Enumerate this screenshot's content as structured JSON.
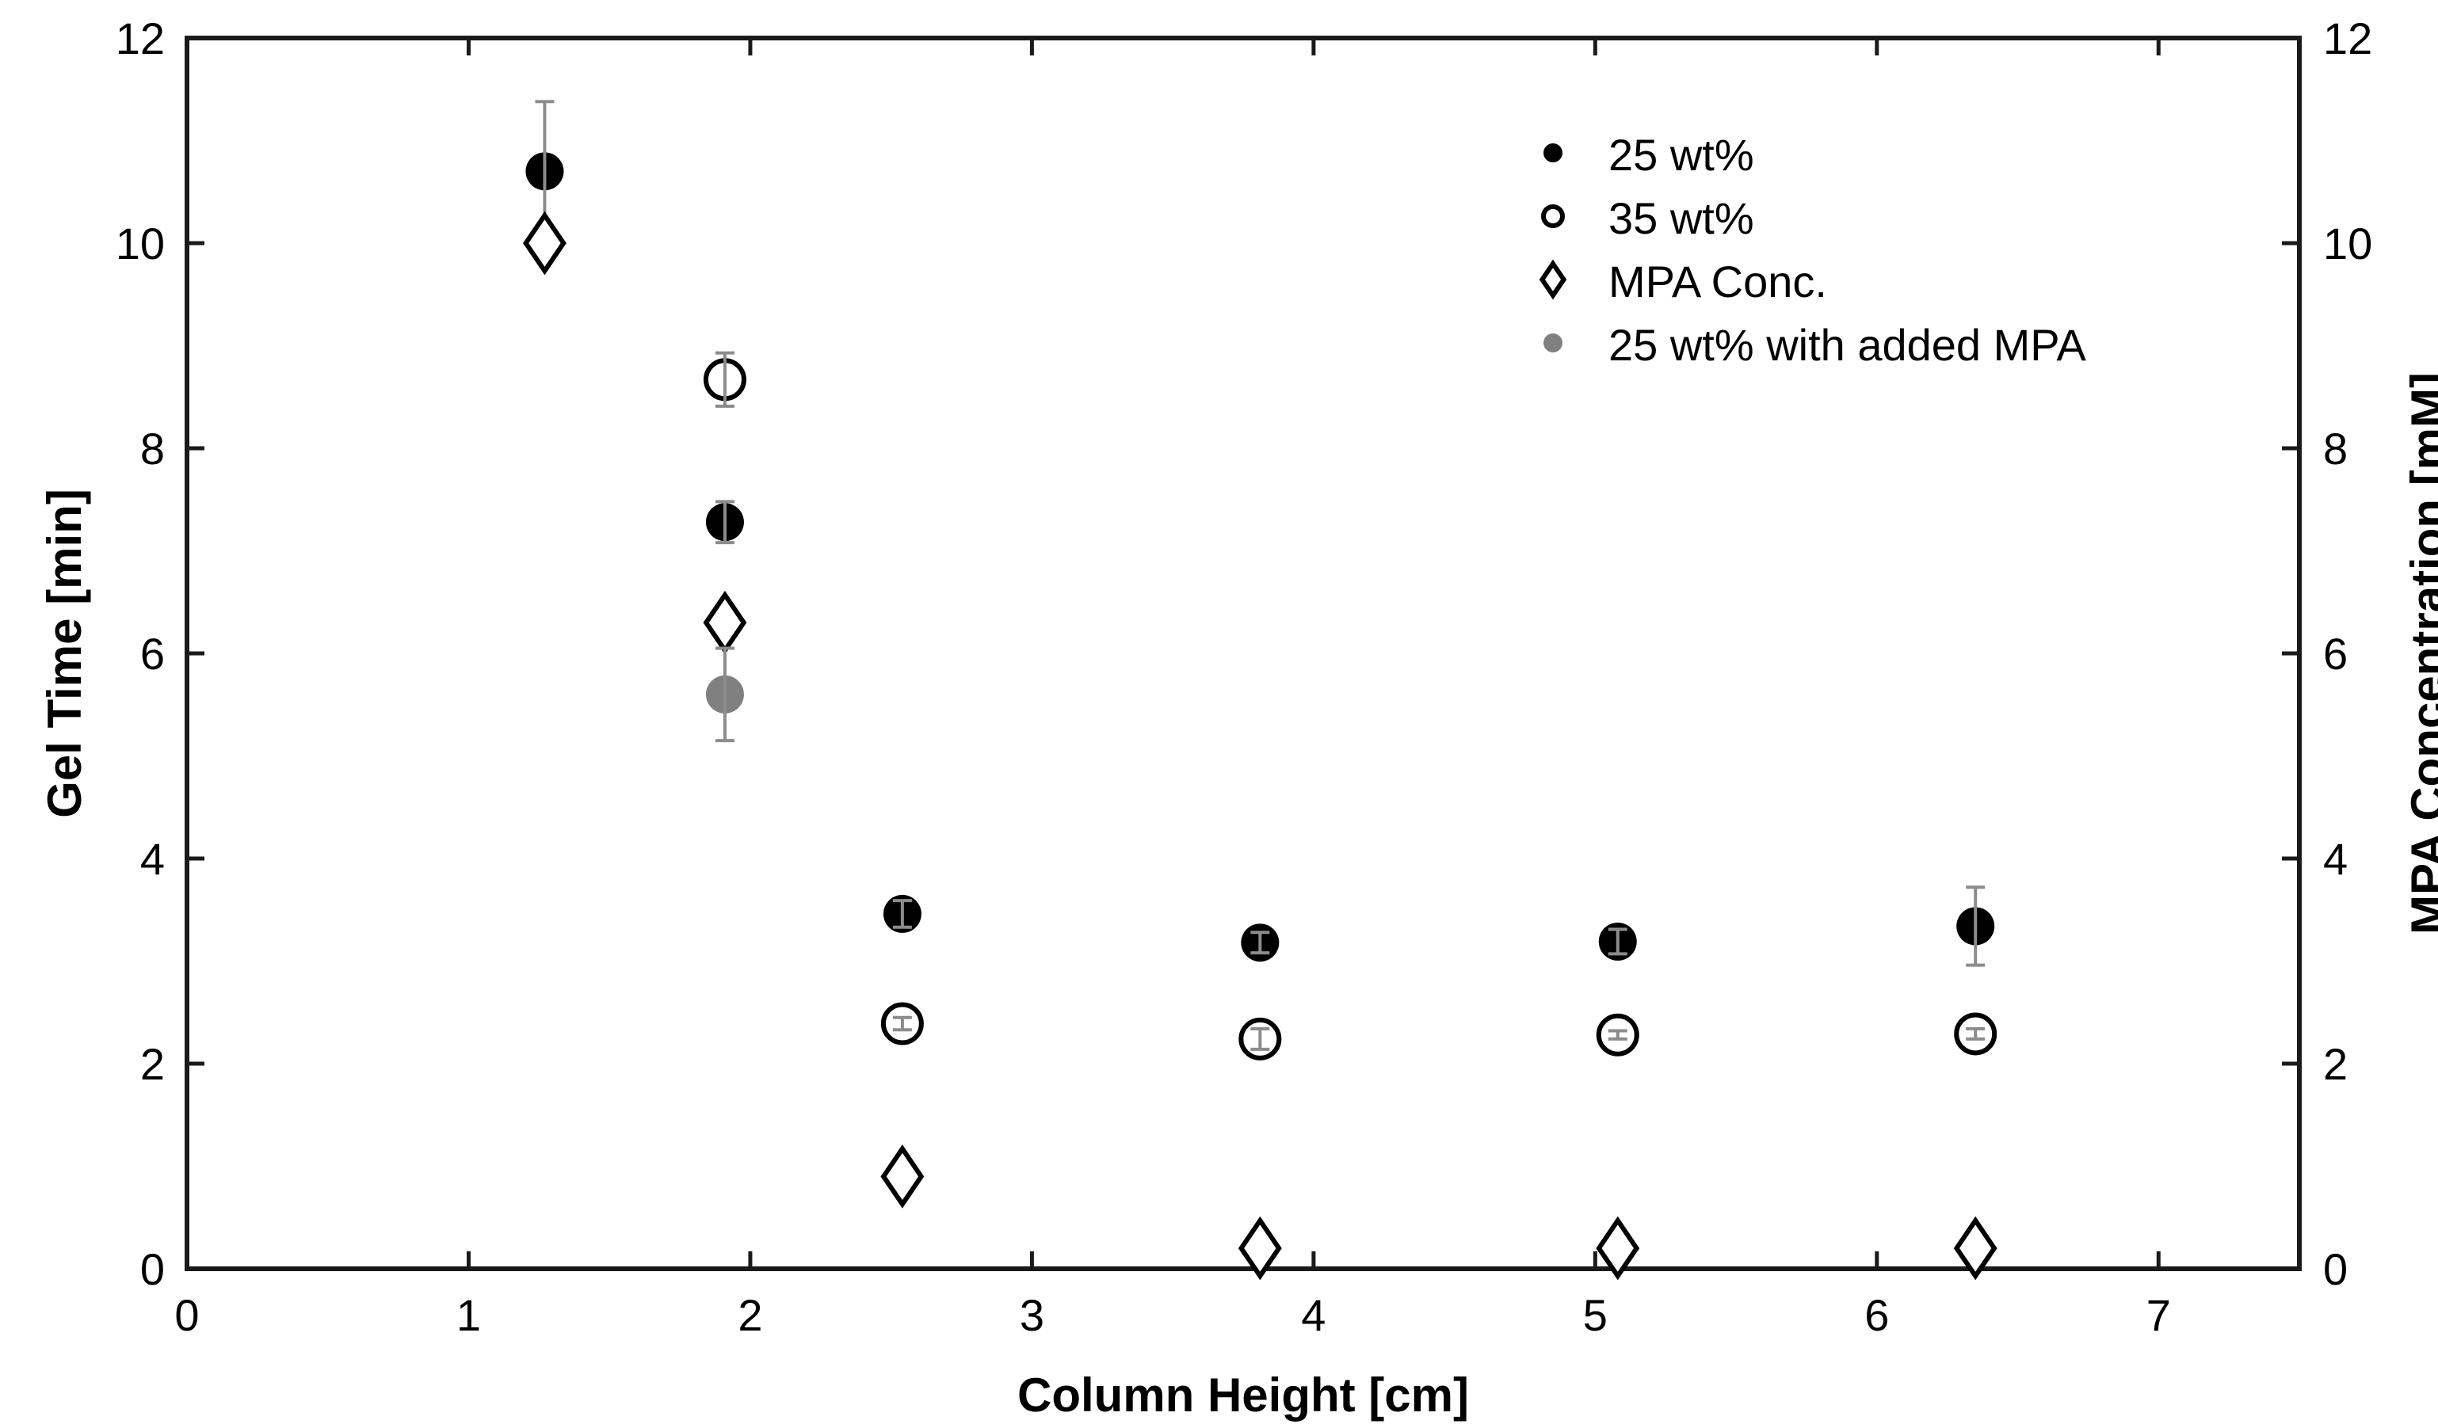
{
  "chart_data": {
    "type": "scatter",
    "xlabel": "Column Height [cm]",
    "ylabel": "Gel Time [min]",
    "y2label": "MPA Concentration [mM]",
    "xlim": [
      0,
      7.5
    ],
    "ylim": [
      0,
      12
    ],
    "y2lim": [
      0,
      12
    ],
    "xticks": [
      0,
      1,
      2,
      3,
      4,
      5,
      6,
      7
    ],
    "yticks": [
      0,
      2,
      4,
      6,
      8,
      10,
      12
    ],
    "y2ticks": [
      0,
      2,
      4,
      6,
      8,
      10,
      12
    ],
    "grid": false,
    "legend_position": "top-right",
    "series": [
      {
        "name": "25 wt%",
        "marker": "filled-circle",
        "color": "#000000",
        "axis": "left",
        "x": [
          1.27,
          1.91,
          2.54,
          3.81,
          5.08,
          6.35
        ],
        "y": [
          10.7,
          7.28,
          3.46,
          3.18,
          3.19,
          3.34
        ],
        "err": [
          0.68,
          0.2,
          0.13,
          0.1,
          0.12,
          0.38
        ]
      },
      {
        "name": "35 wt%",
        "marker": "open-circle",
        "color": "#000000",
        "axis": "left",
        "x": [
          1.91,
          2.54,
          3.81,
          5.08,
          6.35
        ],
        "y": [
          8.67,
          2.39,
          2.24,
          2.28,
          2.29
        ],
        "err": [
          0.26,
          0.06,
          0.1,
          0.04,
          0.05
        ]
      },
      {
        "name": "MPA Conc.",
        "marker": "open-diamond",
        "color": "#000000",
        "axis": "right",
        "x": [
          1.27,
          1.91,
          2.54,
          3.81,
          5.08,
          6.35
        ],
        "y": [
          10.0,
          6.3,
          0.9,
          0.2,
          0.2,
          0.2
        ],
        "err": [
          0,
          0,
          0,
          0,
          0,
          0
        ]
      },
      {
        "name": "25 wt% with added MPA",
        "marker": "filled-circle",
        "color": "#808080",
        "axis": "left",
        "x": [
          1.91
        ],
        "y": [
          5.6
        ],
        "err": [
          0.45
        ]
      }
    ]
  },
  "colors": {
    "errorbar": "#8c8c8c",
    "axis": "#1a1a1a"
  }
}
